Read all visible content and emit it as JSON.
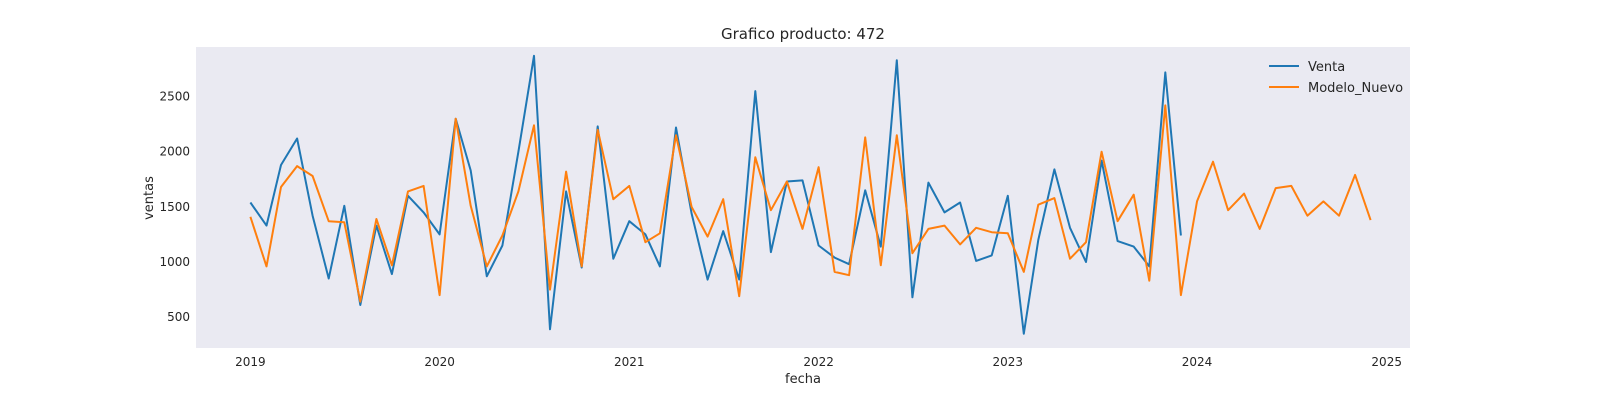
{
  "chart_data": {
    "type": "line",
    "title": "Grafico producto: 472",
    "xlabel": "fecha",
    "ylabel": "ventas",
    "xlim": [
      "2018-09-18",
      "2025-02-15"
    ],
    "ylim": [
      220,
      2950
    ],
    "x_ticks": [
      "2019-01-01",
      "2020-01-01",
      "2021-01-01",
      "2022-01-01",
      "2023-01-01",
      "2024-01-01",
      "2025-01-01"
    ],
    "x_tick_labels": [
      "2019",
      "2020",
      "2021",
      "2022",
      "2023",
      "2024",
      "2025"
    ],
    "y_ticks": [
      500,
      1000,
      1500,
      2000,
      2500
    ],
    "y_tick_labels": [
      "500",
      "1000",
      "1500",
      "2000",
      "2500"
    ],
    "grid": false,
    "background": "#eaeaf2",
    "legend_position": "top-right",
    "series": [
      {
        "name": "Venta",
        "color": "#1f77b4",
        "x": [
          "2019-01",
          "2019-02",
          "2019-03",
          "2019-04",
          "2019-05",
          "2019-06",
          "2019-07",
          "2019-08",
          "2019-09",
          "2019-10",
          "2019-11",
          "2019-12",
          "2020-01",
          "2020-02",
          "2020-03",
          "2020-04",
          "2020-05",
          "2020-06",
          "2020-07",
          "2020-08",
          "2020-09",
          "2020-10",
          "2020-11",
          "2020-12",
          "2021-01",
          "2021-02",
          "2021-03",
          "2021-04",
          "2021-05",
          "2021-06",
          "2021-07",
          "2021-08",
          "2021-09",
          "2021-10",
          "2021-11",
          "2021-12",
          "2022-01",
          "2022-02",
          "2022-03",
          "2022-04",
          "2022-05",
          "2022-06",
          "2022-07",
          "2022-08",
          "2022-09",
          "2022-10",
          "2022-11",
          "2022-12",
          "2023-01",
          "2023-02",
          "2023-03",
          "2023-04",
          "2023-05",
          "2023-06",
          "2023-07",
          "2023-08",
          "2023-09",
          "2023-10",
          "2023-11",
          "2023-12"
        ],
        "values": [
          1540,
          1330,
          1880,
          2120,
          1420,
          850,
          1510,
          610,
          1330,
          890,
          1600,
          1450,
          1250,
          2300,
          1830,
          870,
          1150,
          2000,
          2870,
          390,
          1640,
          950,
          2230,
          1030,
          1370,
          1250,
          960,
          2220,
          1440,
          840,
          1280,
          840,
          2550,
          1090,
          1730,
          1740,
          1150,
          1040,
          980,
          1650,
          1140,
          2830,
          680,
          1720,
          1450,
          1540,
          1010,
          1060,
          1600,
          350,
          1200,
          1840,
          1310,
          1000,
          1920,
          1190,
          1140,
          960,
          2720,
          1240
        ]
      },
      {
        "name": "Modelo_Nuevo",
        "color": "#ff7f0e",
        "x": [
          "2019-01",
          "2019-02",
          "2019-03",
          "2019-04",
          "2019-05",
          "2019-06",
          "2019-07",
          "2019-08",
          "2019-09",
          "2019-10",
          "2019-11",
          "2019-12",
          "2020-01",
          "2020-02",
          "2020-03",
          "2020-04",
          "2020-05",
          "2020-06",
          "2020-07",
          "2020-08",
          "2020-09",
          "2020-10",
          "2020-11",
          "2020-12",
          "2021-01",
          "2021-02",
          "2021-03",
          "2021-04",
          "2021-05",
          "2021-06",
          "2021-07",
          "2021-08",
          "2021-09",
          "2021-10",
          "2021-11",
          "2021-12",
          "2022-01",
          "2022-02",
          "2022-03",
          "2022-04",
          "2022-05",
          "2022-06",
          "2022-07",
          "2022-08",
          "2022-09",
          "2022-10",
          "2022-11",
          "2022-12",
          "2023-01",
          "2023-02",
          "2023-03",
          "2023-04",
          "2023-05",
          "2023-06",
          "2023-07",
          "2023-08",
          "2023-09",
          "2023-10",
          "2023-11",
          "2023-12",
          "2024-01",
          "2024-02",
          "2024-03",
          "2024-04",
          "2024-05",
          "2024-06",
          "2024-07",
          "2024-08",
          "2024-09",
          "2024-10",
          "2024-11",
          "2024-12"
        ],
        "values": [
          1410,
          960,
          1680,
          1870,
          1780,
          1370,
          1360,
          640,
          1390,
          970,
          1640,
          1690,
          700,
          2300,
          1510,
          960,
          1240,
          1640,
          2240,
          750,
          1820,
          960,
          2200,
          1570,
          1690,
          1180,
          1260,
          2150,
          1500,
          1230,
          1570,
          690,
          1950,
          1470,
          1730,
          1300,
          1860,
          910,
          880,
          2130,
          970,
          2150,
          1080,
          1300,
          1330,
          1160,
          1310,
          1270,
          1260,
          910,
          1520,
          1580,
          1030,
          1180,
          2000,
          1370,
          1610,
          830,
          2420,
          700,
          1550,
          1910,
          1470,
          1620,
          1300,
          1670,
          1690,
          1420,
          1550,
          1420,
          1790,
          1380
        ]
      }
    ]
  }
}
